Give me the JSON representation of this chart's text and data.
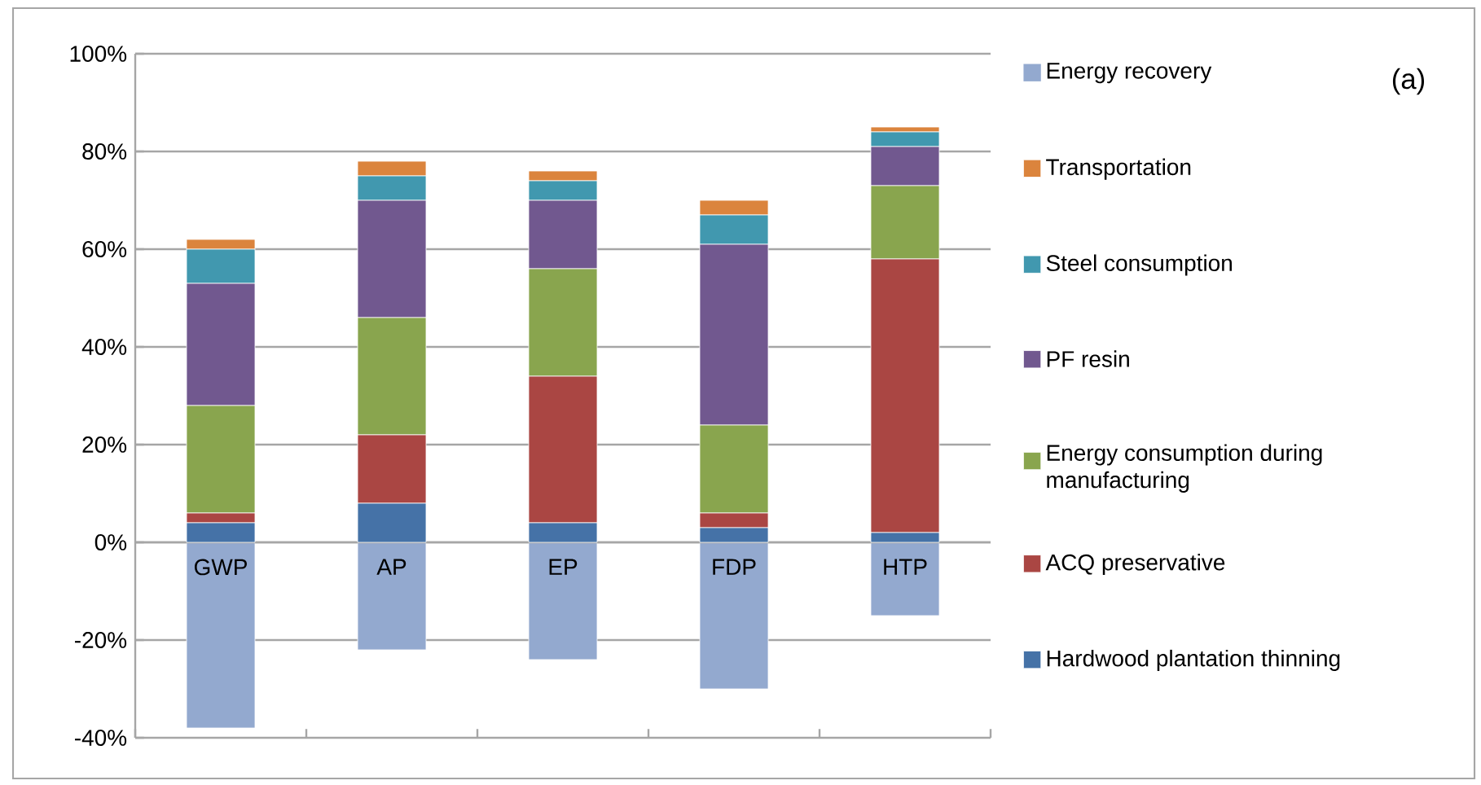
{
  "chart_data": {
    "type": "bar",
    "stacked": true,
    "categories": [
      "GWP",
      "AP",
      "EP",
      "FDP",
      "HTP"
    ],
    "ylim": [
      -40,
      100
    ],
    "yticks": [
      {
        "value": -40,
        "label": "-40%"
      },
      {
        "value": -20,
        "label": "-20%"
      },
      {
        "value": 0,
        "label": "0%"
      },
      {
        "value": 20,
        "label": "20%"
      },
      {
        "value": 40,
        "label": "40%"
      },
      {
        "value": 60,
        "label": "60%"
      },
      {
        "value": 80,
        "label": "80%"
      },
      {
        "value": 100,
        "label": "100%"
      }
    ],
    "grid": "y",
    "legend": "right",
    "annotations": [
      "(a)"
    ],
    "series": [
      {
        "name": "Hardwood plantation thinning",
        "color": "#4572a7",
        "values": [
          4,
          8,
          4,
          3,
          2
        ]
      },
      {
        "name": "ACQ preservative",
        "color": "#aa4643",
        "values": [
          2,
          14,
          30,
          3,
          56
        ]
      },
      {
        "name": "Energy consumption during manufacturing",
        "color": "#89a54e",
        "values": [
          22,
          24,
          22,
          18,
          15
        ]
      },
      {
        "name": "PF resin",
        "color": "#71588f",
        "values": [
          25,
          24,
          14,
          37,
          8
        ]
      },
      {
        "name": "Steel consumption",
        "color": "#4198af",
        "values": [
          7,
          5,
          4,
          6,
          3
        ]
      },
      {
        "name": "Transportation",
        "color": "#db843d",
        "values": [
          2,
          3,
          2,
          3,
          1
        ]
      },
      {
        "name": "Energy recovery",
        "color": "#93a9cf",
        "values": [
          -38,
          -22,
          -24,
          -30,
          -15
        ]
      }
    ]
  }
}
